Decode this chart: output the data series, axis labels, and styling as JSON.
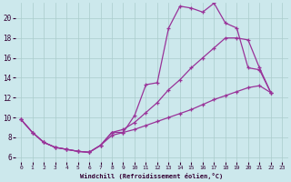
{
  "bg_color": "#cce8ec",
  "line_color": "#993399",
  "xlabel": "Windchill (Refroidissement éolien,°C)",
  "xlim": [
    -0.5,
    23.5
  ],
  "ylim": [
    5.5,
    21.5
  ],
  "yticks": [
    6,
    8,
    10,
    12,
    14,
    16,
    18,
    20
  ],
  "xticks": [
    0,
    1,
    2,
    3,
    4,
    5,
    6,
    7,
    8,
    9,
    10,
    11,
    12,
    13,
    14,
    15,
    16,
    17,
    18,
    19,
    20,
    21,
    22,
    23
  ],
  "grid_color": "#aacccc",
  "curve1_x": [
    0,
    1,
    2,
    3,
    4,
    5,
    6,
    7,
    8,
    9,
    10,
    11,
    12,
    13,
    14,
    15,
    16,
    17,
    18,
    19,
    20,
    21,
    22
  ],
  "curve1_y": [
    9.8,
    8.5,
    7.5,
    7.0,
    6.8,
    6.6,
    6.5,
    7.2,
    8.5,
    8.5,
    10.2,
    13.3,
    13.5,
    19.0,
    21.2,
    21.0,
    20.6,
    21.5,
    19.5,
    19.0,
    15.0,
    14.8,
    12.5
  ],
  "curve2_x": [
    0,
    1,
    2,
    3,
    4,
    5,
    6,
    7,
    8,
    9,
    10,
    11,
    12,
    13,
    14,
    15,
    16,
    17,
    18,
    19,
    20,
    21,
    22
  ],
  "curve2_y": [
    9.8,
    8.5,
    7.5,
    7.0,
    6.8,
    6.6,
    6.5,
    7.2,
    8.5,
    8.8,
    9.5,
    10.5,
    11.5,
    12.8,
    13.8,
    15.0,
    16.0,
    17.0,
    18.0,
    18.0,
    17.8,
    15.0,
    12.5
  ],
  "curve3_x": [
    0,
    1,
    2,
    3,
    4,
    5,
    6,
    7,
    8,
    9,
    10,
    11,
    12,
    13,
    14,
    15,
    16,
    17,
    18,
    19,
    20,
    21,
    22
  ],
  "curve3_y": [
    9.8,
    8.5,
    7.5,
    7.0,
    6.8,
    6.6,
    6.5,
    7.2,
    8.2,
    8.5,
    8.8,
    9.2,
    9.6,
    10.0,
    10.4,
    10.8,
    11.3,
    11.8,
    12.2,
    12.6,
    13.0,
    13.2,
    12.5
  ]
}
